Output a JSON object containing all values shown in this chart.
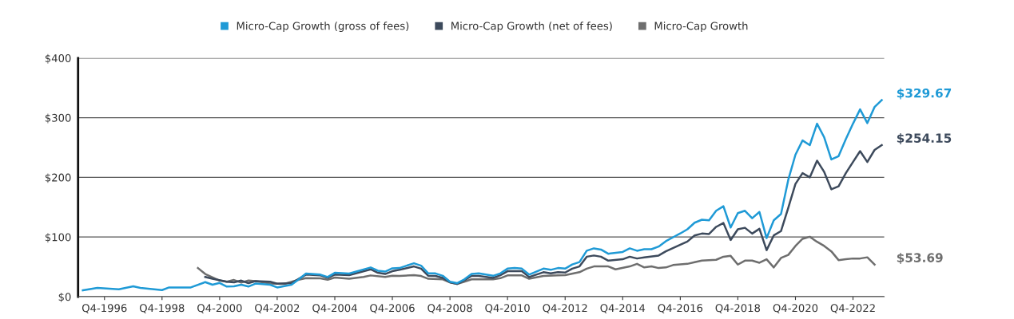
{
  "chart_data": {
    "type": "line",
    "xlim": [
      "1996-01",
      "2024-01"
    ],
    "xticks": [
      {
        "value": "1996-12",
        "label": "Q4-1996"
      },
      {
        "value": "1998-12",
        "label": "Q4-1998"
      },
      {
        "value": "2000-12",
        "label": "Q4-2000"
      },
      {
        "value": "2002-12",
        "label": "Q4-2002"
      },
      {
        "value": "2004-12",
        "label": "Q4-2004"
      },
      {
        "value": "2006-12",
        "label": "Q4-2006"
      },
      {
        "value": "2008-12",
        "label": "Q4-2008"
      },
      {
        "value": "2010-12",
        "label": "Q4-2010"
      },
      {
        "value": "2012-12",
        "label": "Q4-2012"
      },
      {
        "value": "2014-12",
        "label": "Q4-2014"
      },
      {
        "value": "2016-12",
        "label": "Q4-2016"
      },
      {
        "value": "2018-12",
        "label": "Q4-2018"
      },
      {
        "value": "2020-12",
        "label": "Q4-2020"
      },
      {
        "value": "2022-12",
        "label": "Q4-2022"
      }
    ],
    "ylim": [
      0,
      400
    ],
    "yticks": [
      {
        "value": 0,
        "label": "$0"
      },
      {
        "value": 100,
        "label": "$100"
      },
      {
        "value": 200,
        "label": "$200"
      },
      {
        "value": 300,
        "label": "$300"
      },
      {
        "value": 400,
        "label": "$400"
      }
    ],
    "grid": "y",
    "legend": "top",
    "marker": "none",
    "line_style": "solid",
    "series": [
      {
        "name": "Micro-Cap Growth (gross of fees)",
        "color": "#1f9ad6",
        "x": [
          "1996-03",
          "1996-09",
          "1997-06",
          "1997-12",
          "1998-03",
          "1998-12",
          "1999-03",
          "1999-12",
          "2000-06",
          "2000-09",
          "2000-12",
          "2001-03",
          "2001-06",
          "2001-09",
          "2001-12",
          "2002-03",
          "2002-09",
          "2002-12",
          "2003-06",
          "2003-09",
          "2003-12",
          "2004-06",
          "2004-09",
          "2004-12",
          "2005-06",
          "2006-03",
          "2006-06",
          "2006-09",
          "2006-12",
          "2007-03",
          "2007-09",
          "2007-12",
          "2008-03",
          "2008-06",
          "2008-09",
          "2008-12",
          "2009-03",
          "2009-06",
          "2009-09",
          "2009-12",
          "2010-06",
          "2010-09",
          "2010-12",
          "2011-03",
          "2011-06",
          "2011-09",
          "2012-03",
          "2012-06",
          "2012-09",
          "2012-12",
          "2013-03",
          "2013-06",
          "2013-09",
          "2013-12",
          "2014-03",
          "2014-06",
          "2014-12",
          "2015-03",
          "2015-06",
          "2015-09",
          "2015-12",
          "2016-03",
          "2016-06",
          "2016-09",
          "2016-12",
          "2017-03",
          "2017-06",
          "2017-09",
          "2017-12",
          "2018-03",
          "2018-06",
          "2018-09",
          "2018-12",
          "2019-03",
          "2019-06",
          "2019-09",
          "2019-12",
          "2020-03",
          "2020-06",
          "2020-09",
          "2020-12",
          "2021-03",
          "2021-06",
          "2021-09",
          "2021-12",
          "2022-03",
          "2022-06",
          "2022-09",
          "2022-12",
          "2023-03",
          "2023-06",
          "2023-09",
          "2023-12"
        ],
        "values": [
          10.7,
          14.7,
          12.4,
          17.3,
          14.7,
          11,
          15.5,
          15.5,
          24.4,
          20,
          23,
          17,
          17.3,
          20,
          17,
          22,
          20,
          15.5,
          20,
          29,
          38.7,
          37,
          33,
          40,
          38.7,
          49,
          43.5,
          42,
          47.5,
          48,
          56,
          52,
          39,
          39,
          35,
          25,
          22.7,
          29,
          38,
          39,
          35,
          39,
          47,
          48,
          47,
          37,
          47,
          45,
          48,
          47,
          54,
          58,
          77,
          81,
          79,
          72,
          75,
          81,
          77,
          79.5,
          79.5,
          84,
          93,
          99.6,
          106,
          113,
          124,
          129,
          128,
          144,
          151.5,
          116,
          140,
          144,
          131.5,
          142,
          98.2,
          128,
          138.7,
          196,
          238,
          261.8,
          254,
          290,
          267,
          230,
          235.6,
          264,
          290,
          314,
          291,
          318,
          329.67
        ]
      },
      {
        "name": "Micro-Cap Growth (net of fees)",
        "color": "#3d4a5c",
        "x": [
          "2000-06",
          "2000-09",
          "2001-03",
          "2001-06",
          "2001-09",
          "2001-12",
          "2002-03",
          "2002-09",
          "2002-12",
          "2003-06",
          "2003-09",
          "2003-12",
          "2004-06",
          "2004-09",
          "2004-12",
          "2005-06",
          "2006-03",
          "2006-06",
          "2006-09",
          "2006-12",
          "2007-03",
          "2007-09",
          "2007-12",
          "2008-03",
          "2008-06",
          "2008-09",
          "2008-12",
          "2009-03",
          "2009-06",
          "2009-09",
          "2009-12",
          "2010-06",
          "2010-09",
          "2010-12",
          "2011-06",
          "2011-09",
          "2012-03",
          "2012-06",
          "2012-09",
          "2012-12",
          "2013-03",
          "2013-06",
          "2013-09",
          "2013-12",
          "2014-03",
          "2014-06",
          "2014-12",
          "2015-03",
          "2015-06",
          "2015-09",
          "2016-03",
          "2016-06",
          "2016-12",
          "2017-03",
          "2017-06",
          "2017-09",
          "2017-12",
          "2018-03",
          "2018-06",
          "2018-09",
          "2018-12",
          "2019-03",
          "2019-06",
          "2019-09",
          "2019-12",
          "2020-03",
          "2020-06",
          "2020-09",
          "2020-12",
          "2021-03",
          "2021-06",
          "2021-09",
          "2021-12",
          "2022-03",
          "2022-06",
          "2022-09",
          "2022-12",
          "2023-03",
          "2023-06",
          "2023-09",
          "2023-12"
        ],
        "values": [
          33,
          30,
          25,
          24,
          27,
          22.7,
          26,
          25,
          21.8,
          22.7,
          30,
          37,
          35.6,
          31.6,
          37,
          36,
          45.8,
          40,
          38,
          42.7,
          45,
          50.7,
          47,
          35,
          34.7,
          31.5,
          24,
          21.3,
          27.5,
          34.7,
          34.7,
          31.5,
          36,
          42.7,
          42.7,
          32.9,
          41,
          39,
          41,
          40.4,
          47,
          50.7,
          67,
          69,
          67,
          60.4,
          62.7,
          67,
          64,
          65.8,
          69,
          76,
          87,
          92.4,
          102.7,
          105.8,
          105,
          117,
          123.5,
          95,
          112.9,
          115.5,
          105.8,
          113.8,
          78,
          102.7,
          110,
          149,
          189,
          207,
          200,
          228,
          209,
          180,
          184.9,
          207,
          225.8,
          244,
          225.8,
          246,
          254.15
        ]
      },
      {
        "name": "Micro-Cap Growth",
        "color": "#6e6e6e",
        "x": [
          "2000-03",
          "2000-06",
          "2000-12",
          "2001-03",
          "2001-06",
          "2001-09",
          "2001-12",
          "2002-03",
          "2002-09",
          "2003-03",
          "2003-09",
          "2003-12",
          "2004-06",
          "2004-09",
          "2004-12",
          "2005-06",
          "2005-12",
          "2006-03",
          "2006-09",
          "2006-12",
          "2007-03",
          "2007-09",
          "2007-12",
          "2008-03",
          "2008-09",
          "2008-12",
          "2009-03",
          "2009-06",
          "2009-09",
          "2009-12",
          "2010-06",
          "2010-09",
          "2010-12",
          "2011-06",
          "2011-09",
          "2012-03",
          "2012-09",
          "2012-12",
          "2013-06",
          "2013-09",
          "2013-12",
          "2014-06",
          "2014-09",
          "2015-03",
          "2015-06",
          "2015-09",
          "2015-12",
          "2016-03",
          "2016-06",
          "2016-09",
          "2017-03",
          "2017-06",
          "2017-09",
          "2018-03",
          "2018-06",
          "2018-09",
          "2018-12",
          "2019-03",
          "2019-06",
          "2019-09",
          "2019-12",
          "2020-03",
          "2020-06",
          "2020-09",
          "2020-12",
          "2021-03",
          "2021-06",
          "2021-09",
          "2021-12",
          "2022-03",
          "2022-06",
          "2022-09",
          "2022-12",
          "2023-03",
          "2023-06",
          "2023-09"
        ],
        "values": [
          48,
          38,
          27,
          25,
          28,
          23.6,
          27,
          26,
          22,
          21.3,
          28.4,
          31,
          30.7,
          28.4,
          32,
          30,
          33,
          35.6,
          33,
          35,
          34.7,
          36,
          34.7,
          30,
          29,
          24,
          21.3,
          25,
          29,
          29,
          29,
          31,
          35.6,
          35.6,
          30,
          34.7,
          35.6,
          36,
          41,
          47,
          50.7,
          50.7,
          45.8,
          50.7,
          55,
          49,
          50.7,
          48,
          49,
          53,
          55,
          57.8,
          60.4,
          61.8,
          67,
          68.4,
          53.8,
          60.4,
          60.4,
          56.9,
          62.7,
          49,
          64.9,
          70,
          85,
          97,
          100.4,
          92,
          85,
          76,
          61.3,
          62.7,
          64,
          64,
          66,
          53.69
        ]
      }
    ],
    "annotations": [
      {
        "text": "$329.67",
        "x": "2023-12",
        "y": 329.67
      },
      {
        "text": "$254.15",
        "x": "2023-12",
        "y": 254.15
      },
      {
        "text": "$53.69",
        "x": "2023-09",
        "y": 53.69
      }
    ]
  }
}
